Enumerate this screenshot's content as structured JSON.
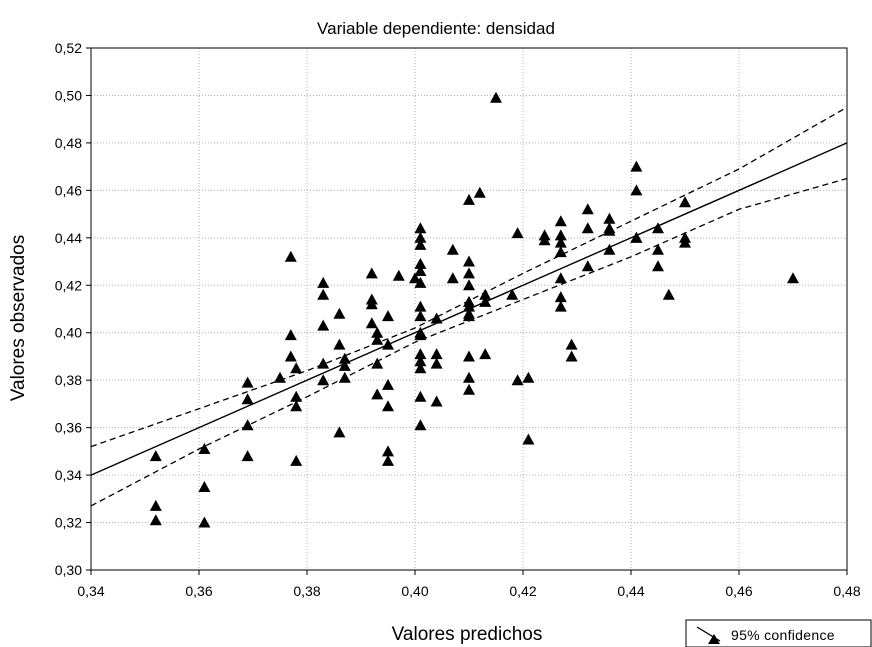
{
  "chart_data": {
    "type": "scatter",
    "title": "Variable dependiente: densidad",
    "xlabel": "Valores predichos",
    "ylabel": "Valores observados",
    "xlim": [
      0.34,
      0.48
    ],
    "ylim": [
      0.3,
      0.52
    ],
    "xticks": [
      0.34,
      0.36,
      0.38,
      0.4,
      0.42,
      0.44,
      0.46,
      0.48
    ],
    "yticks": [
      0.3,
      0.32,
      0.34,
      0.36,
      0.38,
      0.4,
      0.42,
      0.44,
      0.46,
      0.48,
      0.5,
      0.52
    ],
    "xtick_labels": [
      "0,34",
      "0,36",
      "0,38",
      "0,40",
      "0,42",
      "0,44",
      "0,46",
      "0,48"
    ],
    "ytick_labels": [
      "0,30",
      "0,32",
      "0,34",
      "0,36",
      "0,38",
      "0,40",
      "0,42",
      "0,44",
      "0,46",
      "0,48",
      "0,50",
      "0,52"
    ],
    "grid": true,
    "legend": {
      "label": "95% confidence",
      "placement": "bottom-right"
    },
    "fit_line": {
      "x": [
        0.34,
        0.48
      ],
      "y": [
        0.34,
        0.48
      ]
    },
    "confidence_upper": {
      "x": [
        0.34,
        0.36,
        0.38,
        0.4,
        0.42,
        0.44,
        0.46,
        0.48
      ],
      "y": [
        0.352,
        0.368,
        0.384,
        0.402,
        0.425,
        0.447,
        0.469,
        0.495
      ]
    },
    "confidence_lower": {
      "x": [
        0.34,
        0.36,
        0.38,
        0.4,
        0.42,
        0.44,
        0.46,
        0.48
      ],
      "y": [
        0.327,
        0.351,
        0.373,
        0.396,
        0.414,
        0.432,
        0.452,
        0.465
      ]
    },
    "points": {
      "x": [
        0.352,
        0.352,
        0.352,
        0.361,
        0.361,
        0.361,
        0.369,
        0.369,
        0.369,
        0.369,
        0.375,
        0.377,
        0.377,
        0.377,
        0.378,
        0.378,
        0.378,
        0.378,
        0.383,
        0.383,
        0.383,
        0.383,
        0.383,
        0.386,
        0.386,
        0.386,
        0.387,
        0.387,
        0.387,
        0.392,
        0.392,
        0.392,
        0.392,
        0.393,
        0.393,
        0.393,
        0.393,
        0.395,
        0.395,
        0.395,
        0.395,
        0.395,
        0.395,
        0.397,
        0.4,
        0.401,
        0.401,
        0.401,
        0.401,
        0.401,
        0.401,
        0.401,
        0.401,
        0.401,
        0.401,
        0.401,
        0.401,
        0.401,
        0.401,
        0.401,
        0.404,
        0.404,
        0.404,
        0.404,
        0.407,
        0.407,
        0.41,
        0.41,
        0.41,
        0.41,
        0.41,
        0.41,
        0.41,
        0.41,
        0.41,
        0.41,
        0.41,
        0.412,
        0.413,
        0.413,
        0.413,
        0.415,
        0.419,
        0.418,
        0.419,
        0.421,
        0.421,
        0.424,
        0.424,
        0.427,
        0.427,
        0.427,
        0.427,
        0.427,
        0.427,
        0.427,
        0.429,
        0.429,
        0.432,
        0.432,
        0.432,
        0.436,
        0.436,
        0.436,
        0.436,
        0.441,
        0.441,
        0.441,
        0.441,
        0.445,
        0.445,
        0.445,
        0.447,
        0.45,
        0.45,
        0.45,
        0.47
      ],
      "y": [
        0.348,
        0.327,
        0.321,
        0.351,
        0.335,
        0.32,
        0.379,
        0.372,
        0.361,
        0.348,
        0.381,
        0.432,
        0.399,
        0.39,
        0.385,
        0.373,
        0.369,
        0.346,
        0.421,
        0.416,
        0.403,
        0.387,
        0.38,
        0.408,
        0.395,
        0.358,
        0.389,
        0.386,
        0.381,
        0.425,
        0.414,
        0.412,
        0.404,
        0.4,
        0.397,
        0.387,
        0.374,
        0.407,
        0.395,
        0.378,
        0.369,
        0.35,
        0.346,
        0.424,
        0.423,
        0.444,
        0.44,
        0.437,
        0.429,
        0.426,
        0.421,
        0.411,
        0.407,
        0.4,
        0.391,
        0.388,
        0.385,
        0.373,
        0.361,
        0.399,
        0.406,
        0.391,
        0.387,
        0.371,
        0.435,
        0.423,
        0.456,
        0.43,
        0.425,
        0.42,
        0.411,
        0.408,
        0.407,
        0.39,
        0.381,
        0.376,
        0.413,
        0.459,
        0.416,
        0.413,
        0.391,
        0.499,
        0.442,
        0.416,
        0.38,
        0.381,
        0.355,
        0.441,
        0.439,
        0.447,
        0.441,
        0.438,
        0.434,
        0.423,
        0.415,
        0.411,
        0.395,
        0.39,
        0.452,
        0.444,
        0.428,
        0.448,
        0.444,
        0.435,
        0.443,
        0.47,
        0.46,
        0.44,
        0.44,
        0.444,
        0.435,
        0.428,
        0.416,
        0.455,
        0.44,
        0.438,
        0.423
      ]
    }
  }
}
